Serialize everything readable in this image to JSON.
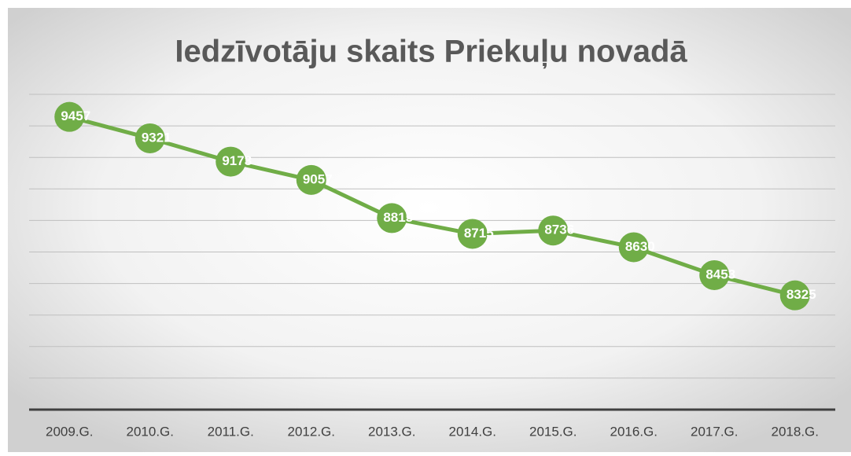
{
  "chart_data": {
    "type": "line",
    "title": "Iedzīvotāju skaits Priekuļu novadā",
    "categories": [
      "2009.G.",
      "2010.G.",
      "2011.G.",
      "2012.G.",
      "2013.G.",
      "2014.G.",
      "2015.G.",
      "2016.G.",
      "2017.G.",
      "2018.G."
    ],
    "values": [
      9457,
      9321,
      9173,
      9057,
      8815,
      8715,
      8736,
      8630,
      8453,
      8325
    ],
    "color": "#70ad47",
    "ylim": [
      7600,
      9600
    ],
    "yticks": [
      7600,
      7800,
      8000,
      8200,
      8400,
      8600,
      8800,
      9000,
      9200,
      9400,
      9600
    ],
    "grid": true,
    "data_labels": true
  }
}
